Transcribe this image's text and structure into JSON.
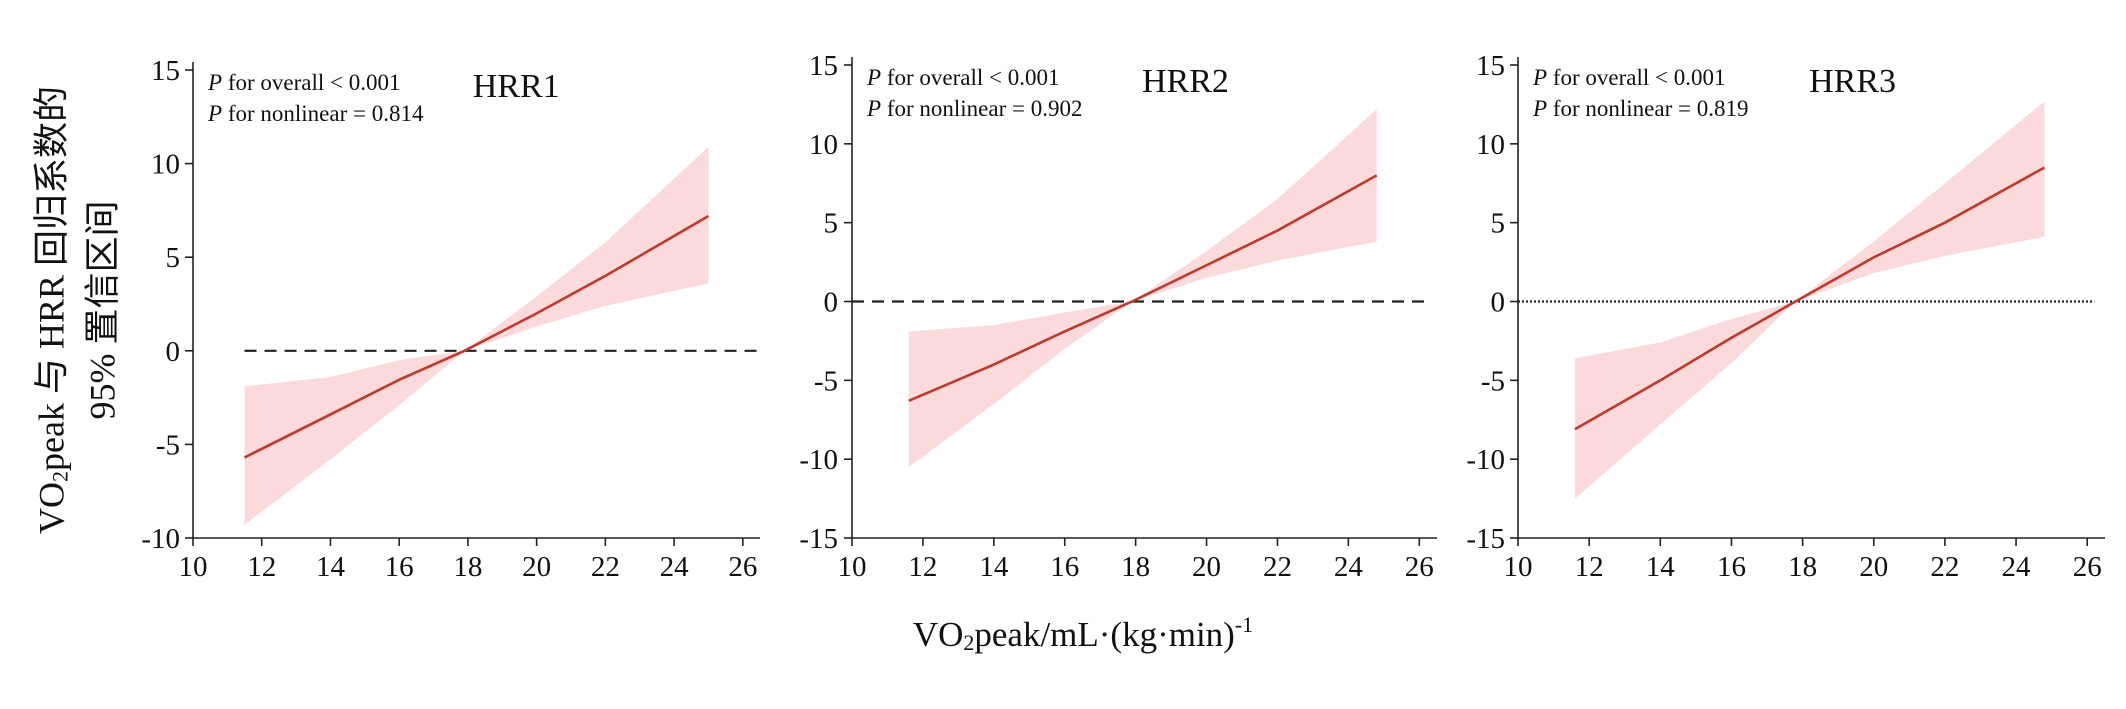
{
  "colors": {
    "line": "#c0392b",
    "band": "#fbdadb",
    "axis": "#222222"
  },
  "ylabel": {
    "line1_prefix": "VO",
    "line1_sub": "2",
    "line1_rest": "peak 与 HRR 回归系数的",
    "line2": "95% 置信区间"
  },
  "xlabel": {
    "prefix": "VO",
    "sub": "2",
    "mid": "peak/mL·(kg·min)",
    "sup": "-1"
  },
  "chart_data": [
    {
      "type": "line",
      "panel_label": "HRR1",
      "annotations": [
        {
          "italic": "P",
          "text": " for overall < 0.001"
        },
        {
          "italic": "P",
          "text": " for nonlinear = 0.814"
        }
      ],
      "xlim": [
        10,
        26.5
      ],
      "ylim": [
        -10,
        15
      ],
      "xticks": [
        "10",
        "12",
        "14",
        "16",
        "18",
        "20",
        "22",
        "24",
        "26"
      ],
      "yticks": [
        "-10",
        "-5",
        "0",
        "5",
        "10",
        "15"
      ],
      "reference_line": {
        "y": 0,
        "style": "dashed",
        "x_range": [
          11.5,
          26.5
        ]
      },
      "series": {
        "x": [
          11.5,
          14,
          16,
          17.9,
          20,
          22,
          25
        ],
        "estimate": [
          -5.7,
          -3.4,
          -1.55,
          0,
          2.0,
          4.0,
          7.2
        ],
        "lower": [
          -9.3,
          -5.8,
          -2.9,
          0,
          1.3,
          2.4,
          3.6
        ],
        "upper": [
          -1.9,
          -1.4,
          -0.5,
          0,
          2.9,
          5.8,
          10.9
        ]
      }
    },
    {
      "type": "line",
      "panel_label": "HRR2",
      "annotations": [
        {
          "italic": "P",
          "text": " for overall < 0.001"
        },
        {
          "italic": "P",
          "text": " for nonlinear = 0.902"
        }
      ],
      "xlim": [
        10,
        26.5
      ],
      "ylim": [
        -15,
        15
      ],
      "xticks": [
        "10",
        "12",
        "14",
        "16",
        "18",
        "20",
        "22",
        "24",
        "26"
      ],
      "yticks": [
        "-15",
        "-10",
        "-5",
        "0",
        "5",
        "10",
        "15"
      ],
      "reference_line": {
        "y": 0,
        "style": "dashed",
        "x_range": [
          10,
          26.2
        ]
      },
      "series": {
        "x": [
          11.6,
          14,
          16,
          17.9,
          20,
          22,
          24.8
        ],
        "estimate": [
          -6.3,
          -4.0,
          -1.9,
          0,
          2.3,
          4.5,
          8.0
        ],
        "lower": [
          -10.5,
          -6.5,
          -3.0,
          0,
          1.5,
          2.6,
          3.8
        ],
        "upper": [
          -1.9,
          -1.5,
          -0.7,
          0,
          3.2,
          6.5,
          12.2
        ]
      }
    },
    {
      "type": "line",
      "panel_label": "HRR3",
      "annotations": [
        {
          "italic": "P",
          "text": " for overall < 0.001"
        },
        {
          "italic": "P",
          "text": " for nonlinear = 0.819"
        }
      ],
      "xlim": [
        10,
        26.5
      ],
      "ylim": [
        -15,
        15
      ],
      "xticks": [
        "10",
        "12",
        "14",
        "16",
        "18",
        "20",
        "22",
        "24",
        "26"
      ],
      "yticks": [
        "-15",
        "-10",
        "-5",
        "0",
        "5",
        "10",
        "15"
      ],
      "reference_line": {
        "y": 0,
        "style": "dotted",
        "x_range": [
          10,
          26.2
        ]
      },
      "series": {
        "x": [
          11.6,
          14,
          16,
          17.8,
          20,
          22,
          24.8
        ],
        "estimate": [
          -8.1,
          -5.0,
          -2.3,
          0,
          2.8,
          5.0,
          8.5
        ],
        "lower": [
          -12.5,
          -7.8,
          -3.9,
          0,
          1.8,
          2.9,
          4.1
        ],
        "upper": [
          -3.6,
          -2.6,
          -1.1,
          0,
          3.8,
          7.5,
          12.7
        ]
      }
    }
  ]
}
